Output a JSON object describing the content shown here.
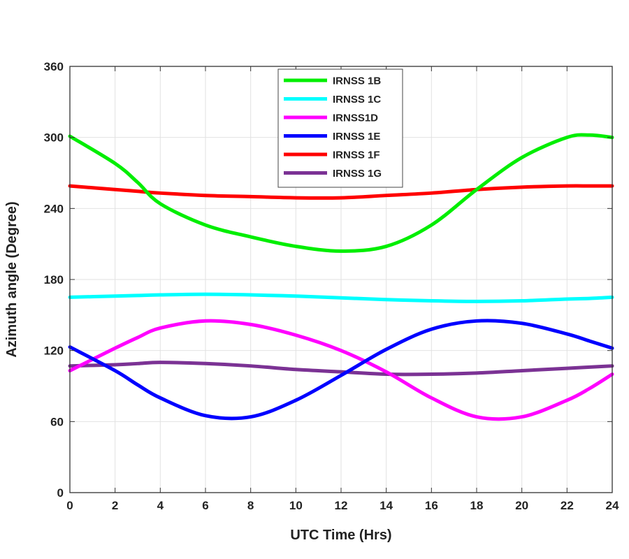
{
  "chart_data": {
    "type": "line",
    "xlabel": "UTC Time (Hrs)",
    "ylabel": "Azimuth angle (Degree)",
    "xlim": [
      0,
      24
    ],
    "ylim": [
      0,
      360
    ],
    "xticks": [
      0,
      2,
      4,
      6,
      8,
      10,
      12,
      14,
      16,
      18,
      20,
      22,
      24
    ],
    "yticks": [
      0,
      60,
      120,
      180,
      240,
      300,
      360
    ],
    "grid": true,
    "legend_position": "top-center",
    "x": [
      0,
      2,
      3,
      4,
      6,
      8,
      10,
      12,
      14,
      16,
      18,
      20,
      22,
      23,
      24
    ],
    "series": [
      {
        "name": "IRNSS 1B",
        "color": "#00ee00",
        "values": [
          301,
          278,
          262,
          244,
          226,
          216,
          208,
          204,
          208,
          226,
          256,
          283,
          300,
          302,
          300
        ]
      },
      {
        "name": "IRNSS 1C",
        "color": "#00ffff",
        "values": [
          165,
          166,
          166.5,
          167,
          167.5,
          167,
          166,
          164.5,
          163,
          162,
          161.5,
          162,
          163.5,
          164,
          165
        ]
      },
      {
        "name": "IRNSS1D",
        "color": "#ff00ff",
        "values": [
          103,
          122,
          131,
          139,
          145,
          142,
          133,
          120,
          102,
          80,
          64,
          64,
          78,
          88,
          100
        ]
      },
      {
        "name": "IRNSS 1E",
        "color": "#0000ff",
        "values": [
          123,
          103,
          91,
          80,
          65,
          64,
          78,
          99,
          121,
          138,
          145,
          143,
          134,
          128,
          122
        ]
      },
      {
        "name": "IRNSS 1F",
        "color": "#ff0000",
        "values": [
          259,
          256,
          254.5,
          253,
          251,
          250,
          249,
          249,
          251,
          253,
          256,
          258,
          259,
          259,
          259
        ]
      },
      {
        "name": "IRNSS 1G",
        "color": "#7b3294",
        "values": [
          107,
          108,
          109,
          110,
          109,
          107,
          104,
          102,
          100,
          100,
          101,
          103,
          105,
          106,
          107
        ]
      }
    ]
  }
}
